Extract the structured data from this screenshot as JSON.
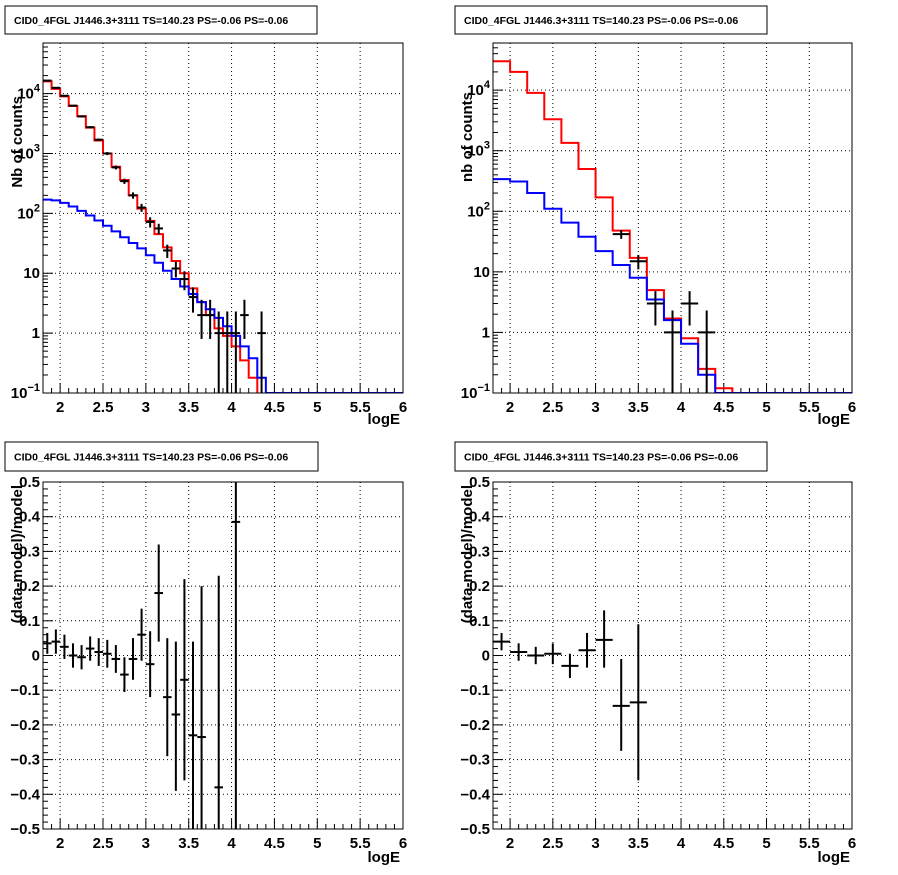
{
  "chart_data": [
    {
      "type": "step",
      "title": "CID0_4FGL J1446.3+3111 TS=140.23 PS=-0.06 PS=-0.06",
      "xlabel": "logE",
      "ylabel": "Nb of counts",
      "xlim": [
        1.8,
        6.0
      ],
      "ylim": [
        0.1,
        70000
      ],
      "log_y": true,
      "grid": true,
      "x_ticks": [
        {
          "v": 2,
          "label": "2"
        },
        {
          "v": 2.5,
          "label": "2.5"
        },
        {
          "v": 3,
          "label": "3"
        },
        {
          "v": 3.5,
          "label": "3.5"
        },
        {
          "v": 4,
          "label": "4"
        },
        {
          "v": 4.5,
          "label": "4.5"
        },
        {
          "v": 5,
          "label": "5"
        },
        {
          "v": 5.5,
          "label": "5.5"
        },
        {
          "v": 6,
          "label": "6"
        }
      ],
      "y_ticks": [
        {
          "v": 0.1,
          "base": "10",
          "exp": "−1"
        },
        {
          "v": 1,
          "base": "1"
        },
        {
          "v": 10,
          "base": "10"
        },
        {
          "v": 100,
          "base": "10",
          "exp": "2"
        },
        {
          "v": 1000,
          "base": "10",
          "exp": "3"
        },
        {
          "v": 10000,
          "base": "10",
          "exp": "4"
        }
      ],
      "bins": {
        "start": 1.8,
        "width": 0.1,
        "count": 42
      },
      "series": [
        {
          "color": "#ff0000",
          "kind": "hist",
          "values": [
            16000,
            12000,
            9000,
            6200,
            4200,
            2700,
            1650,
            1000,
            600,
            360,
            200,
            120,
            75,
            45,
            27,
            16,
            10,
            5.6,
            3.3,
            2.0,
            1.2,
            0.9,
            0.6,
            0.35,
            0.18,
            0.09,
            0.09,
            0.09,
            0.09,
            0.09,
            0.09,
            0.09,
            0.09,
            0.09,
            0.09,
            0.09,
            0.09,
            0.09,
            0.09,
            0.09,
            0.09,
            0.09
          ]
        },
        {
          "color": "#0000ff",
          "kind": "hist",
          "values": [
            170,
            165,
            150,
            130,
            110,
            92,
            76,
            62,
            50,
            40,
            32,
            26,
            20,
            15,
            11,
            8,
            6,
            4.5,
            3.3,
            2.5,
            1.8,
            1.3,
            0.9,
            0.6,
            0.38,
            0.18,
            0.1,
            0.1,
            0.1,
            0.1,
            0.1,
            0.1,
            0.1,
            0.1,
            0.1,
            0.1,
            0.1,
            0.1,
            0.1,
            0.1,
            0.1,
            0.1
          ]
        },
        {
          "color": "#000000",
          "kind": "points",
          "points": [
            {
              "x": 1.85,
              "y": 16500,
              "lo": 16200,
              "hi": 16800
            },
            {
              "x": 1.95,
              "y": 12500,
              "lo": 12300,
              "hi": 12700
            },
            {
              "x": 2.05,
              "y": 9200,
              "lo": 9000,
              "hi": 9400
            },
            {
              "x": 2.15,
              "y": 6300,
              "lo": 6150,
              "hi": 6450
            },
            {
              "x": 2.25,
              "y": 4150,
              "lo": 4030,
              "hi": 4270
            },
            {
              "x": 2.35,
              "y": 2750,
              "lo": 2650,
              "hi": 2850
            },
            {
              "x": 2.45,
              "y": 1700,
              "lo": 1620,
              "hi": 1780
            },
            {
              "x": 2.55,
              "y": 1000,
              "lo": 940,
              "hi": 1060
            },
            {
              "x": 2.65,
              "y": 585,
              "lo": 540,
              "hi": 630
            },
            {
              "x": 2.75,
              "y": 345,
              "lo": 310,
              "hi": 380
            },
            {
              "x": 2.85,
              "y": 200,
              "lo": 176,
              "hi": 224
            },
            {
              "x": 2.95,
              "y": 125,
              "lo": 106,
              "hi": 144
            },
            {
              "x": 3.05,
              "y": 72,
              "lo": 58,
              "hi": 86
            },
            {
              "x": 3.15,
              "y": 56,
              "lo": 45,
              "hi": 67
            },
            {
              "x": 3.25,
              "y": 24,
              "lo": 18,
              "hi": 30
            },
            {
              "x": 3.35,
              "y": 12,
              "lo": 8.5,
              "hi": 15.5
            },
            {
              "x": 3.45,
              "y": 8,
              "lo": 5.2,
              "hi": 10.8
            },
            {
              "x": 3.55,
              "y": 4,
              "lo": 2.2,
              "hi": 5.8
            },
            {
              "x": 3.65,
              "y": 2,
              "lo": 0.8,
              "hi": 3.6
            },
            {
              "x": 3.75,
              "y": 2,
              "lo": 0.8,
              "hi": 3.6
            },
            {
              "x": 3.85,
              "y": 1,
              "lo": 0.1,
              "hi": 2.3
            },
            {
              "x": 3.95,
              "y": 1,
              "lo": 0.1,
              "hi": 2.3
            },
            {
              "x": 4.05,
              "y": 1,
              "lo": 0.1,
              "hi": 2.3
            },
            {
              "x": 4.15,
              "y": 2,
              "lo": 0.8,
              "hi": 3.6
            },
            {
              "x": 4.35,
              "y": 1,
              "lo": 0.1,
              "hi": 2.3
            }
          ]
        }
      ]
    },
    {
      "type": "step",
      "title": "CID0_4FGL J1446.3+3111 TS=140.23 PS=-0.06 PS=-0.06",
      "xlabel": "logE",
      "ylabel": "nb of counts",
      "xlim": [
        1.8,
        6.0
      ],
      "ylim": [
        0.1,
        60000
      ],
      "log_y": true,
      "grid": true,
      "x_ticks": [
        {
          "v": 2,
          "label": "2"
        },
        {
          "v": 2.5,
          "label": "2.5"
        },
        {
          "v": 3,
          "label": "3"
        },
        {
          "v": 3.5,
          "label": "3.5"
        },
        {
          "v": 4,
          "label": "4"
        },
        {
          "v": 4.5,
          "label": "4.5"
        },
        {
          "v": 5,
          "label": "5"
        },
        {
          "v": 5.5,
          "label": "5.5"
        },
        {
          "v": 6,
          "label": "6"
        }
      ],
      "y_ticks": [
        {
          "v": 0.1,
          "base": "10",
          "exp": "−1"
        },
        {
          "v": 1,
          "base": "1"
        },
        {
          "v": 10,
          "base": "10"
        },
        {
          "v": 100,
          "base": "10",
          "exp": "2"
        },
        {
          "v": 1000,
          "base": "10",
          "exp": "3"
        },
        {
          "v": 10000,
          "base": "10",
          "exp": "4"
        }
      ],
      "bins": {
        "start": 1.8,
        "width": 0.2,
        "count": 21
      },
      "series": [
        {
          "color": "#ff0000",
          "kind": "hist",
          "values": [
            30000,
            20000,
            9000,
            3300,
            1350,
            500,
            170,
            48,
            17,
            5,
            1.7,
            0.8,
            0.25,
            0.12,
            0.1,
            0.1,
            0.1,
            0.1,
            0.1,
            0.1,
            0.1
          ]
        },
        {
          "color": "#0000ff",
          "kind": "hist",
          "values": [
            340,
            310,
            200,
            110,
            65,
            38,
            22,
            13,
            8,
            3.5,
            1.6,
            0.65,
            0.2,
            0.1,
            0.1,
            0.1,
            0.1,
            0.1,
            0.1,
            0.1,
            0.1
          ]
        },
        {
          "color": "#000000",
          "kind": "points",
          "points": [
            {
              "x": 3.3,
              "y": 42,
              "lo": 35,
              "hi": 49
            },
            {
              "x": 3.5,
              "y": 15,
              "lo": 11,
              "hi": 19
            },
            {
              "x": 3.7,
              "y": 3,
              "lo": 1.3,
              "hi": 4.8
            },
            {
              "x": 3.9,
              "y": 1,
              "lo": 0.1,
              "hi": 2.3
            },
            {
              "x": 4.1,
              "y": 3,
              "lo": 1.3,
              "hi": 4.8
            },
            {
              "x": 4.3,
              "y": 1,
              "lo": 0.1,
              "hi": 2.3
            }
          ]
        }
      ]
    },
    {
      "type": "scatter",
      "title": "CID0_4FGL J1446.3+3111 TS=140.23 PS=-0.06 PS=-0.06",
      "xlabel": "logE",
      "ylabel": "(data-model)/model",
      "xlim": [
        1.8,
        6.0
      ],
      "ylim": [
        -0.5,
        0.5
      ],
      "log_y": false,
      "grid": true,
      "x_ticks": [
        {
          "v": 2,
          "label": "2"
        },
        {
          "v": 2.5,
          "label": "2.5"
        },
        {
          "v": 3,
          "label": "3"
        },
        {
          "v": 3.5,
          "label": "3.5"
        },
        {
          "v": 4,
          "label": "4"
        },
        {
          "v": 4.5,
          "label": "4.5"
        },
        {
          "v": 5,
          "label": "5"
        },
        {
          "v": 5.5,
          "label": "5.5"
        },
        {
          "v": 6,
          "label": "6"
        }
      ],
      "y_ticks": [
        {
          "v": -0.5,
          "label": "−0.5"
        },
        {
          "v": -0.4,
          "label": "−0.4"
        },
        {
          "v": -0.3,
          "label": "−0.3"
        },
        {
          "v": -0.2,
          "label": "−0.2"
        },
        {
          "v": -0.1,
          "label": "−0.1"
        },
        {
          "v": 0,
          "label": "0"
        },
        {
          "v": 0.1,
          "label": "0.1"
        },
        {
          "v": 0.2,
          "label": "0.2"
        },
        {
          "v": 0.3,
          "label": "0.3"
        },
        {
          "v": 0.4,
          "label": "0.4"
        },
        {
          "v": 0.5,
          "label": "0.5"
        }
      ],
      "series": [
        {
          "color": "#000000",
          "kind": "points",
          "xerr": 0.05,
          "points": [
            {
              "x": 1.85,
              "y": 0.035,
              "lo": 0.005,
              "hi": 0.065
            },
            {
              "x": 1.95,
              "y": 0.04,
              "lo": 0.005,
              "hi": 0.075
            },
            {
              "x": 2.05,
              "y": 0.025,
              "lo": -0.01,
              "hi": 0.06
            },
            {
              "x": 2.15,
              "y": 0.0,
              "lo": -0.035,
              "hi": 0.035
            },
            {
              "x": 2.25,
              "y": -0.005,
              "lo": -0.04,
              "hi": 0.03
            },
            {
              "x": 2.35,
              "y": 0.02,
              "lo": -0.015,
              "hi": 0.055
            },
            {
              "x": 2.45,
              "y": 0.01,
              "lo": -0.03,
              "hi": 0.05
            },
            {
              "x": 2.55,
              "y": 0.005,
              "lo": -0.035,
              "hi": 0.045
            },
            {
              "x": 2.65,
              "y": -0.01,
              "lo": -0.05,
              "hi": 0.03
            },
            {
              "x": 2.75,
              "y": -0.055,
              "lo": -0.105,
              "hi": -0.005
            },
            {
              "x": 2.85,
              "y": -0.01,
              "lo": -0.07,
              "hi": 0.05
            },
            {
              "x": 2.95,
              "y": 0.06,
              "lo": -0.015,
              "hi": 0.135
            },
            {
              "x": 3.05,
              "y": -0.025,
              "lo": -0.12,
              "hi": 0.07
            },
            {
              "x": 3.15,
              "y": 0.18,
              "lo": 0.04,
              "hi": 0.32
            },
            {
              "x": 3.25,
              "y": -0.12,
              "lo": -0.29,
              "hi": 0.05
            },
            {
              "x": 3.35,
              "y": -0.17,
              "lo": -0.39,
              "hi": 0.04
            },
            {
              "x": 3.45,
              "y": -0.07,
              "lo": -0.36,
              "hi": 0.22
            },
            {
              "x": 3.55,
              "y": -0.23,
              "lo": -0.5,
              "hi": 0.04
            },
            {
              "x": 3.65,
              "y": -0.235,
              "lo": -0.5,
              "hi": 0.2
            },
            {
              "x": 3.85,
              "y": -0.38,
              "lo": -0.5,
              "hi": 0.23
            },
            {
              "x": 4.05,
              "y": 0.385,
              "lo": -0.5,
              "hi": 0.5
            }
          ]
        }
      ]
    },
    {
      "type": "scatter",
      "title": "CID0_4FGL J1446.3+3111 TS=140.23 PS=-0.06 PS=-0.06",
      "xlabel": "logE",
      "ylabel": "(data-model)/model",
      "xlim": [
        1.8,
        6.0
      ],
      "ylim": [
        -0.5,
        0.5
      ],
      "log_y": false,
      "grid": true,
      "x_ticks": [
        {
          "v": 2,
          "label": "2"
        },
        {
          "v": 2.5,
          "label": "2.5"
        },
        {
          "v": 3,
          "label": "3"
        },
        {
          "v": 3.5,
          "label": "3.5"
        },
        {
          "v": 4,
          "label": "4"
        },
        {
          "v": 4.5,
          "label": "4.5"
        },
        {
          "v": 5,
          "label": "5"
        },
        {
          "v": 5.5,
          "label": "5.5"
        },
        {
          "v": 6,
          "label": "6"
        }
      ],
      "y_ticks": [
        {
          "v": -0.5,
          "label": "−0.5"
        },
        {
          "v": -0.4,
          "label": "−0.4"
        },
        {
          "v": -0.3,
          "label": "−0.3"
        },
        {
          "v": -0.2,
          "label": "−0.2"
        },
        {
          "v": -0.1,
          "label": "−0.1"
        },
        {
          "v": 0,
          "label": "0"
        },
        {
          "v": 0.1,
          "label": "0.1"
        },
        {
          "v": 0.2,
          "label": "0.2"
        },
        {
          "v": 0.3,
          "label": "0.3"
        },
        {
          "v": 0.4,
          "label": "0.4"
        },
        {
          "v": 0.5,
          "label": "0.5"
        }
      ],
      "series": [
        {
          "color": "#000000",
          "kind": "points",
          "xerr": 0.1,
          "points": [
            {
              "x": 1.9,
              "y": 0.04,
              "lo": 0.015,
              "hi": 0.065
            },
            {
              "x": 2.1,
              "y": 0.01,
              "lo": -0.015,
              "hi": 0.035
            },
            {
              "x": 2.3,
              "y": 0.0,
              "lo": -0.025,
              "hi": 0.025
            },
            {
              "x": 2.5,
              "y": 0.005,
              "lo": -0.025,
              "hi": 0.035
            },
            {
              "x": 2.7,
              "y": -0.03,
              "lo": -0.065,
              "hi": 0.005
            },
            {
              "x": 2.9,
              "y": 0.015,
              "lo": -0.035,
              "hi": 0.065
            },
            {
              "x": 3.1,
              "y": 0.045,
              "lo": -0.035,
              "hi": 0.13
            },
            {
              "x": 3.3,
              "y": -0.145,
              "lo": -0.275,
              "hi": -0.01
            },
            {
              "x": 3.5,
              "y": -0.135,
              "lo": -0.36,
              "hi": 0.09
            }
          ]
        }
      ]
    }
  ]
}
